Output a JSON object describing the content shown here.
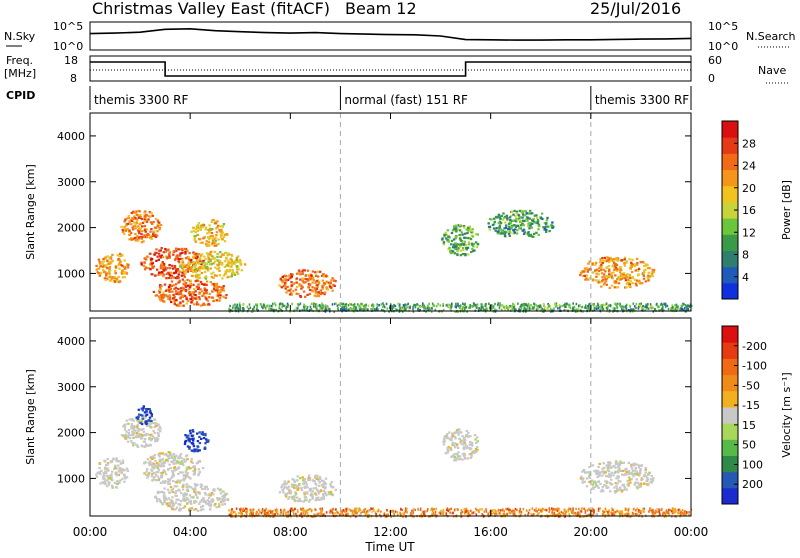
{
  "header": {
    "title": "Christmas Valley East (fitACF)",
    "beam": "Beam 12",
    "date": "25/Jul/2016"
  },
  "noise_panel": {
    "left_label": "N.Sky",
    "right_label": "N.Search",
    "left_ticks": [
      "10^5",
      "10^0"
    ],
    "right_ticks": [
      "10^5",
      "10^0"
    ],
    "sky_level": [
      0.6,
      0.62,
      0.66,
      0.78,
      0.8,
      0.72,
      0.68,
      0.64,
      0.62,
      0.64,
      0.6,
      0.58,
      0.56,
      0.55,
      0.5,
      0.35,
      0.34,
      0.33,
      0.33,
      0.34,
      0.34,
      0.36,
      0.37,
      0.38,
      0.4
    ]
  },
  "freq_panel": {
    "left_label_top": "Freq.",
    "left_label_bottom": "[MHz]",
    "left_ticks": [
      "18",
      "8"
    ],
    "right_ticks": [
      "60",
      "0"
    ],
    "right_label": "Nave",
    "freq_segments": [
      {
        "from": 0,
        "to": 3,
        "value": 0.85
      },
      {
        "from": 3,
        "to": 15,
        "value": 0.15
      },
      {
        "from": 15,
        "to": 24,
        "value": 0.85
      }
    ],
    "nave_level": 0.45
  },
  "cpid": {
    "label": "CPID",
    "segments": [
      {
        "from": 0,
        "to": 10,
        "text": "themis 3300 RF"
      },
      {
        "from": 10,
        "to": 20,
        "text": "normal (fast) 151 RF"
      },
      {
        "from": 20,
        "to": 24,
        "text": "themis 3300 RF"
      }
    ]
  },
  "chart_data": [
    {
      "type": "heatmap",
      "name": "power",
      "ylabel": "Slant Range [km]",
      "yticks": [
        1000,
        2000,
        3000,
        4000
      ],
      "ylim": [
        180,
        4500
      ],
      "xlim": [
        0,
        24
      ],
      "colorbar": {
        "label": "Power [dB]",
        "ticks": [
          "4",
          "8",
          "12",
          "16",
          "20",
          "24",
          "28"
        ],
        "colors": [
          "#1030e0",
          "#1f5bb8",
          "#2f7f6f",
          "#3a9a48",
          "#6cc63c",
          "#c8d43a",
          "#f2c21e",
          "#f5961a",
          "#f06a18",
          "#e63a16",
          "#d81010"
        ]
      },
      "blobs": [
        {
          "t0": 0.2,
          "t1": 1.5,
          "r0": 800,
          "r1": 1500,
          "level": 0.7
        },
        {
          "t0": 1.2,
          "t1": 2.8,
          "r0": 1700,
          "r1": 2400,
          "level": 0.75
        },
        {
          "t0": 2.0,
          "t1": 4.5,
          "r0": 900,
          "r1": 1600,
          "level": 0.85
        },
        {
          "t0": 2.5,
          "t1": 5.5,
          "r0": 300,
          "r1": 900,
          "level": 0.8
        },
        {
          "t0": 4.0,
          "t1": 5.5,
          "r0": 1600,
          "r1": 2200,
          "level": 0.6
        },
        {
          "t0": 3.5,
          "t1": 6.2,
          "r0": 900,
          "r1": 1500,
          "level": 0.55
        },
        {
          "t0": 7.5,
          "t1": 9.8,
          "r0": 500,
          "r1": 1100,
          "level": 0.8
        },
        {
          "t0": 14.0,
          "t1": 15.5,
          "r0": 1400,
          "r1": 2100,
          "level": 0.35
        },
        {
          "t0": 15.8,
          "t1": 18.5,
          "r0": 1800,
          "r1": 2400,
          "level": 0.3
        },
        {
          "t0": 19.5,
          "t1": 22.5,
          "r0": 700,
          "r1": 1400,
          "level": 0.7
        }
      ],
      "ground_level": 0.3
    },
    {
      "type": "heatmap",
      "name": "velocity",
      "ylabel": "Slant Range [km]",
      "yticks": [
        1000,
        2000,
        3000,
        4000
      ],
      "ylim": [
        180,
        4500
      ],
      "xlim": [
        0,
        24
      ],
      "xticks": [
        "00:00",
        "04:00",
        "08:00",
        "12:00",
        "16:00",
        "20:00",
        "00:00"
      ],
      "xlabel": "Time UT",
      "colorbar": {
        "label": "Velocity [m s⁻¹]",
        "ticks": [
          "200",
          "100",
          "50",
          "15",
          "-15",
          "-50",
          "-100",
          "-200"
        ],
        "colors": [
          "#1a2bcf",
          "#2659b4",
          "#2f8a4a",
          "#56b948",
          "#a8d85a",
          "#c8c8c8",
          "#f0b020",
          "#f08a18",
          "#ef6a14",
          "#e63a12",
          "#dd1010"
        ]
      },
      "blobs": [
        {
          "t0": 0.2,
          "t1": 1.5,
          "r0": 800,
          "r1": 1500,
          "level": 0.5
        },
        {
          "t0": 1.2,
          "t1": 2.8,
          "r0": 1700,
          "r1": 2400,
          "level": 0.5
        },
        {
          "t0": 2.0,
          "t1": 4.5,
          "r0": 900,
          "r1": 1600,
          "level": 0.5
        },
        {
          "t0": 2.5,
          "t1": 5.5,
          "r0": 300,
          "r1": 900,
          "level": 0.5
        },
        {
          "t0": 3.7,
          "t1": 4.7,
          "r0": 1600,
          "r1": 2100,
          "level": 0.05
        },
        {
          "t0": 1.8,
          "t1": 2.5,
          "r0": 2200,
          "r1": 2600,
          "level": 0.05
        },
        {
          "t0": 7.5,
          "t1": 9.8,
          "r0": 500,
          "r1": 1100,
          "level": 0.5
        },
        {
          "t0": 14.0,
          "t1": 15.5,
          "r0": 1400,
          "r1": 2100,
          "level": 0.5
        },
        {
          "t0": 19.5,
          "t1": 22.5,
          "r0": 700,
          "r1": 1400,
          "level": 0.5
        }
      ],
      "ground_level": 0.72
    }
  ]
}
